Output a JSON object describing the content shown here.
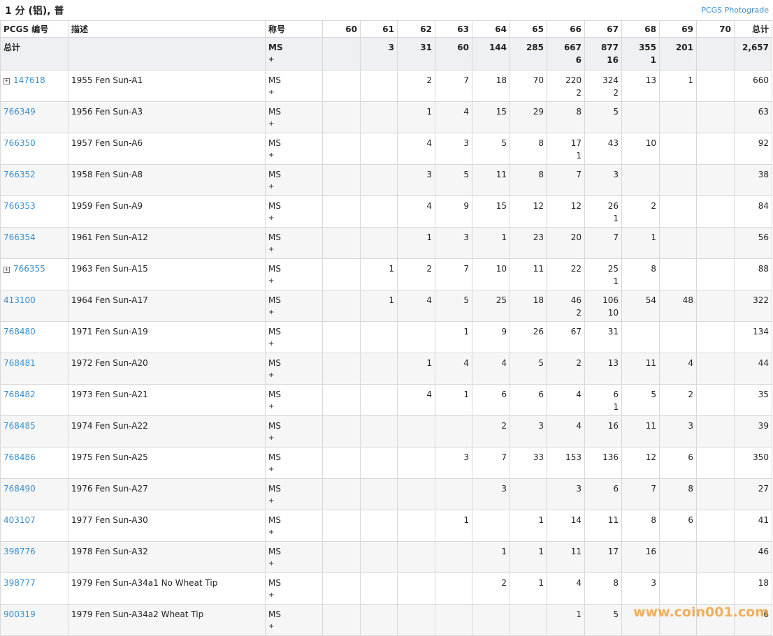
{
  "header": {
    "title": "1 分 (铝), 普",
    "link": "PCGS Photograde"
  },
  "table": {
    "columns": [
      "PCGS 编号",
      "描述",
      "称号",
      "60",
      "61",
      "62",
      "63",
      "64",
      "65",
      "66",
      "67",
      "68",
      "69",
      "70",
      "总计"
    ],
    "total_row": {
      "label": "总计",
      "designation": [
        "MS",
        "+"
      ],
      "grades": [
        null,
        3,
        31,
        60,
        144,
        285,
        {
          "count": 667,
          "plus": 6
        },
        {
          "count": 877,
          "plus": 16
        },
        {
          "count": 355,
          "plus": 1
        },
        201,
        null
      ],
      "total": "2,657"
    },
    "rows": [
      {
        "id": "147618",
        "expandable": true,
        "desc": "1955 Fen Sun-A1",
        "designation": [
          "MS",
          "+"
        ],
        "grades": [
          null,
          null,
          2,
          7,
          18,
          70,
          {
            "count": 220,
            "plus": 2
          },
          {
            "count": 324,
            "plus": 2
          },
          13,
          1,
          null
        ],
        "total": 660
      },
      {
        "id": "766349",
        "desc": "1956 Fen Sun-A3",
        "designation": [
          "MS",
          "+"
        ],
        "grades": [
          null,
          null,
          1,
          4,
          15,
          29,
          8,
          5,
          null,
          null,
          null
        ],
        "total": 63
      },
      {
        "id": "766350",
        "desc": "1957 Fen Sun-A6",
        "designation": [
          "MS",
          "+"
        ],
        "grades": [
          null,
          null,
          4,
          3,
          5,
          8,
          {
            "count": 17,
            "plus": 1
          },
          43,
          10,
          null,
          null
        ],
        "total": 92
      },
      {
        "id": "766352",
        "desc": "1958 Fen Sun-A8",
        "designation": [
          "MS",
          "+"
        ],
        "grades": [
          null,
          null,
          3,
          5,
          11,
          8,
          7,
          3,
          null,
          null,
          null
        ],
        "total": 38
      },
      {
        "id": "766353",
        "desc": "1959 Fen Sun-A9",
        "designation": [
          "MS",
          "+"
        ],
        "grades": [
          null,
          null,
          4,
          9,
          15,
          12,
          12,
          {
            "count": 26,
            "plus": 1
          },
          2,
          null,
          null
        ],
        "total": 84
      },
      {
        "id": "766354",
        "desc": "1961 Fen Sun-A12",
        "designation": [
          "MS",
          "+"
        ],
        "grades": [
          null,
          null,
          1,
          3,
          1,
          23,
          20,
          7,
          1,
          null,
          null
        ],
        "total": 56
      },
      {
        "id": "766355",
        "expandable": true,
        "desc": "1963 Fen Sun-A15",
        "designation": [
          "MS",
          "+"
        ],
        "grades": [
          null,
          1,
          2,
          7,
          10,
          11,
          22,
          {
            "count": 25,
            "plus": 1
          },
          8,
          null,
          null
        ],
        "total": 88
      },
      {
        "id": "413100",
        "desc": "1964 Fen Sun-A17",
        "designation": [
          "MS",
          "+"
        ],
        "grades": [
          null,
          1,
          4,
          5,
          25,
          18,
          {
            "count": 46,
            "plus": 2
          },
          {
            "count": 106,
            "plus": 10
          },
          54,
          48,
          null
        ],
        "total": 322
      },
      {
        "id": "768480",
        "desc": "1971 Fen Sun-A19",
        "designation": [
          "MS",
          "+"
        ],
        "grades": [
          null,
          null,
          null,
          1,
          9,
          26,
          67,
          31,
          null,
          null,
          null
        ],
        "total": 134
      },
      {
        "id": "768481",
        "desc": "1972 Fen Sun-A20",
        "designation": [
          "MS",
          "+"
        ],
        "grades": [
          null,
          null,
          1,
          4,
          4,
          5,
          2,
          13,
          11,
          4,
          null
        ],
        "total": 44
      },
      {
        "id": "768482",
        "desc": "1973 Fen Sun-A21",
        "designation": [
          "MS",
          "+"
        ],
        "grades": [
          null,
          null,
          4,
          1,
          6,
          6,
          4,
          {
            "count": 6,
            "plus": 1
          },
          5,
          2,
          null
        ],
        "total": 35
      },
      {
        "id": "768485",
        "desc": "1974 Fen Sun-A22",
        "designation": [
          "MS",
          "+"
        ],
        "grades": [
          null,
          null,
          null,
          null,
          2,
          3,
          4,
          16,
          11,
          3,
          null
        ],
        "total": 39
      },
      {
        "id": "768486",
        "desc": "1975 Fen Sun-A25",
        "designation": [
          "MS",
          "+"
        ],
        "grades": [
          null,
          null,
          null,
          3,
          7,
          33,
          153,
          136,
          12,
          6,
          null
        ],
        "total": 350
      },
      {
        "id": "768490",
        "desc": "1976 Fen Sun-A27",
        "designation": [
          "MS",
          "+"
        ],
        "grades": [
          null,
          null,
          null,
          null,
          3,
          null,
          3,
          6,
          7,
          8,
          null
        ],
        "total": 27
      },
      {
        "id": "403107",
        "desc": "1977 Fen Sun-A30",
        "designation": [
          "MS",
          "+"
        ],
        "grades": [
          null,
          null,
          null,
          1,
          null,
          1,
          14,
          11,
          8,
          6,
          null
        ],
        "total": 41
      },
      {
        "id": "398776",
        "desc": "1978 Fen Sun-A32",
        "designation": [
          "MS",
          "+"
        ],
        "grades": [
          null,
          null,
          null,
          null,
          1,
          1,
          11,
          17,
          16,
          null,
          null
        ],
        "total": 46
      },
      {
        "id": "398777",
        "desc": "1979 Fen Sun-A34a1 No Wheat Tip",
        "designation": [
          "MS",
          "+"
        ],
        "grades": [
          null,
          null,
          null,
          null,
          2,
          1,
          4,
          8,
          3,
          null,
          null
        ],
        "total": 18
      },
      {
        "id": "900319",
        "desc": "1979 Fen Sun-A34a2 Wheat Tip",
        "designation": [
          "MS",
          "+"
        ],
        "grades": [
          null,
          null,
          null,
          null,
          null,
          null,
          1,
          5,
          null,
          null,
          null
        ],
        "total": 6
      }
    ]
  },
  "watermark": "www.coin001.com"
}
